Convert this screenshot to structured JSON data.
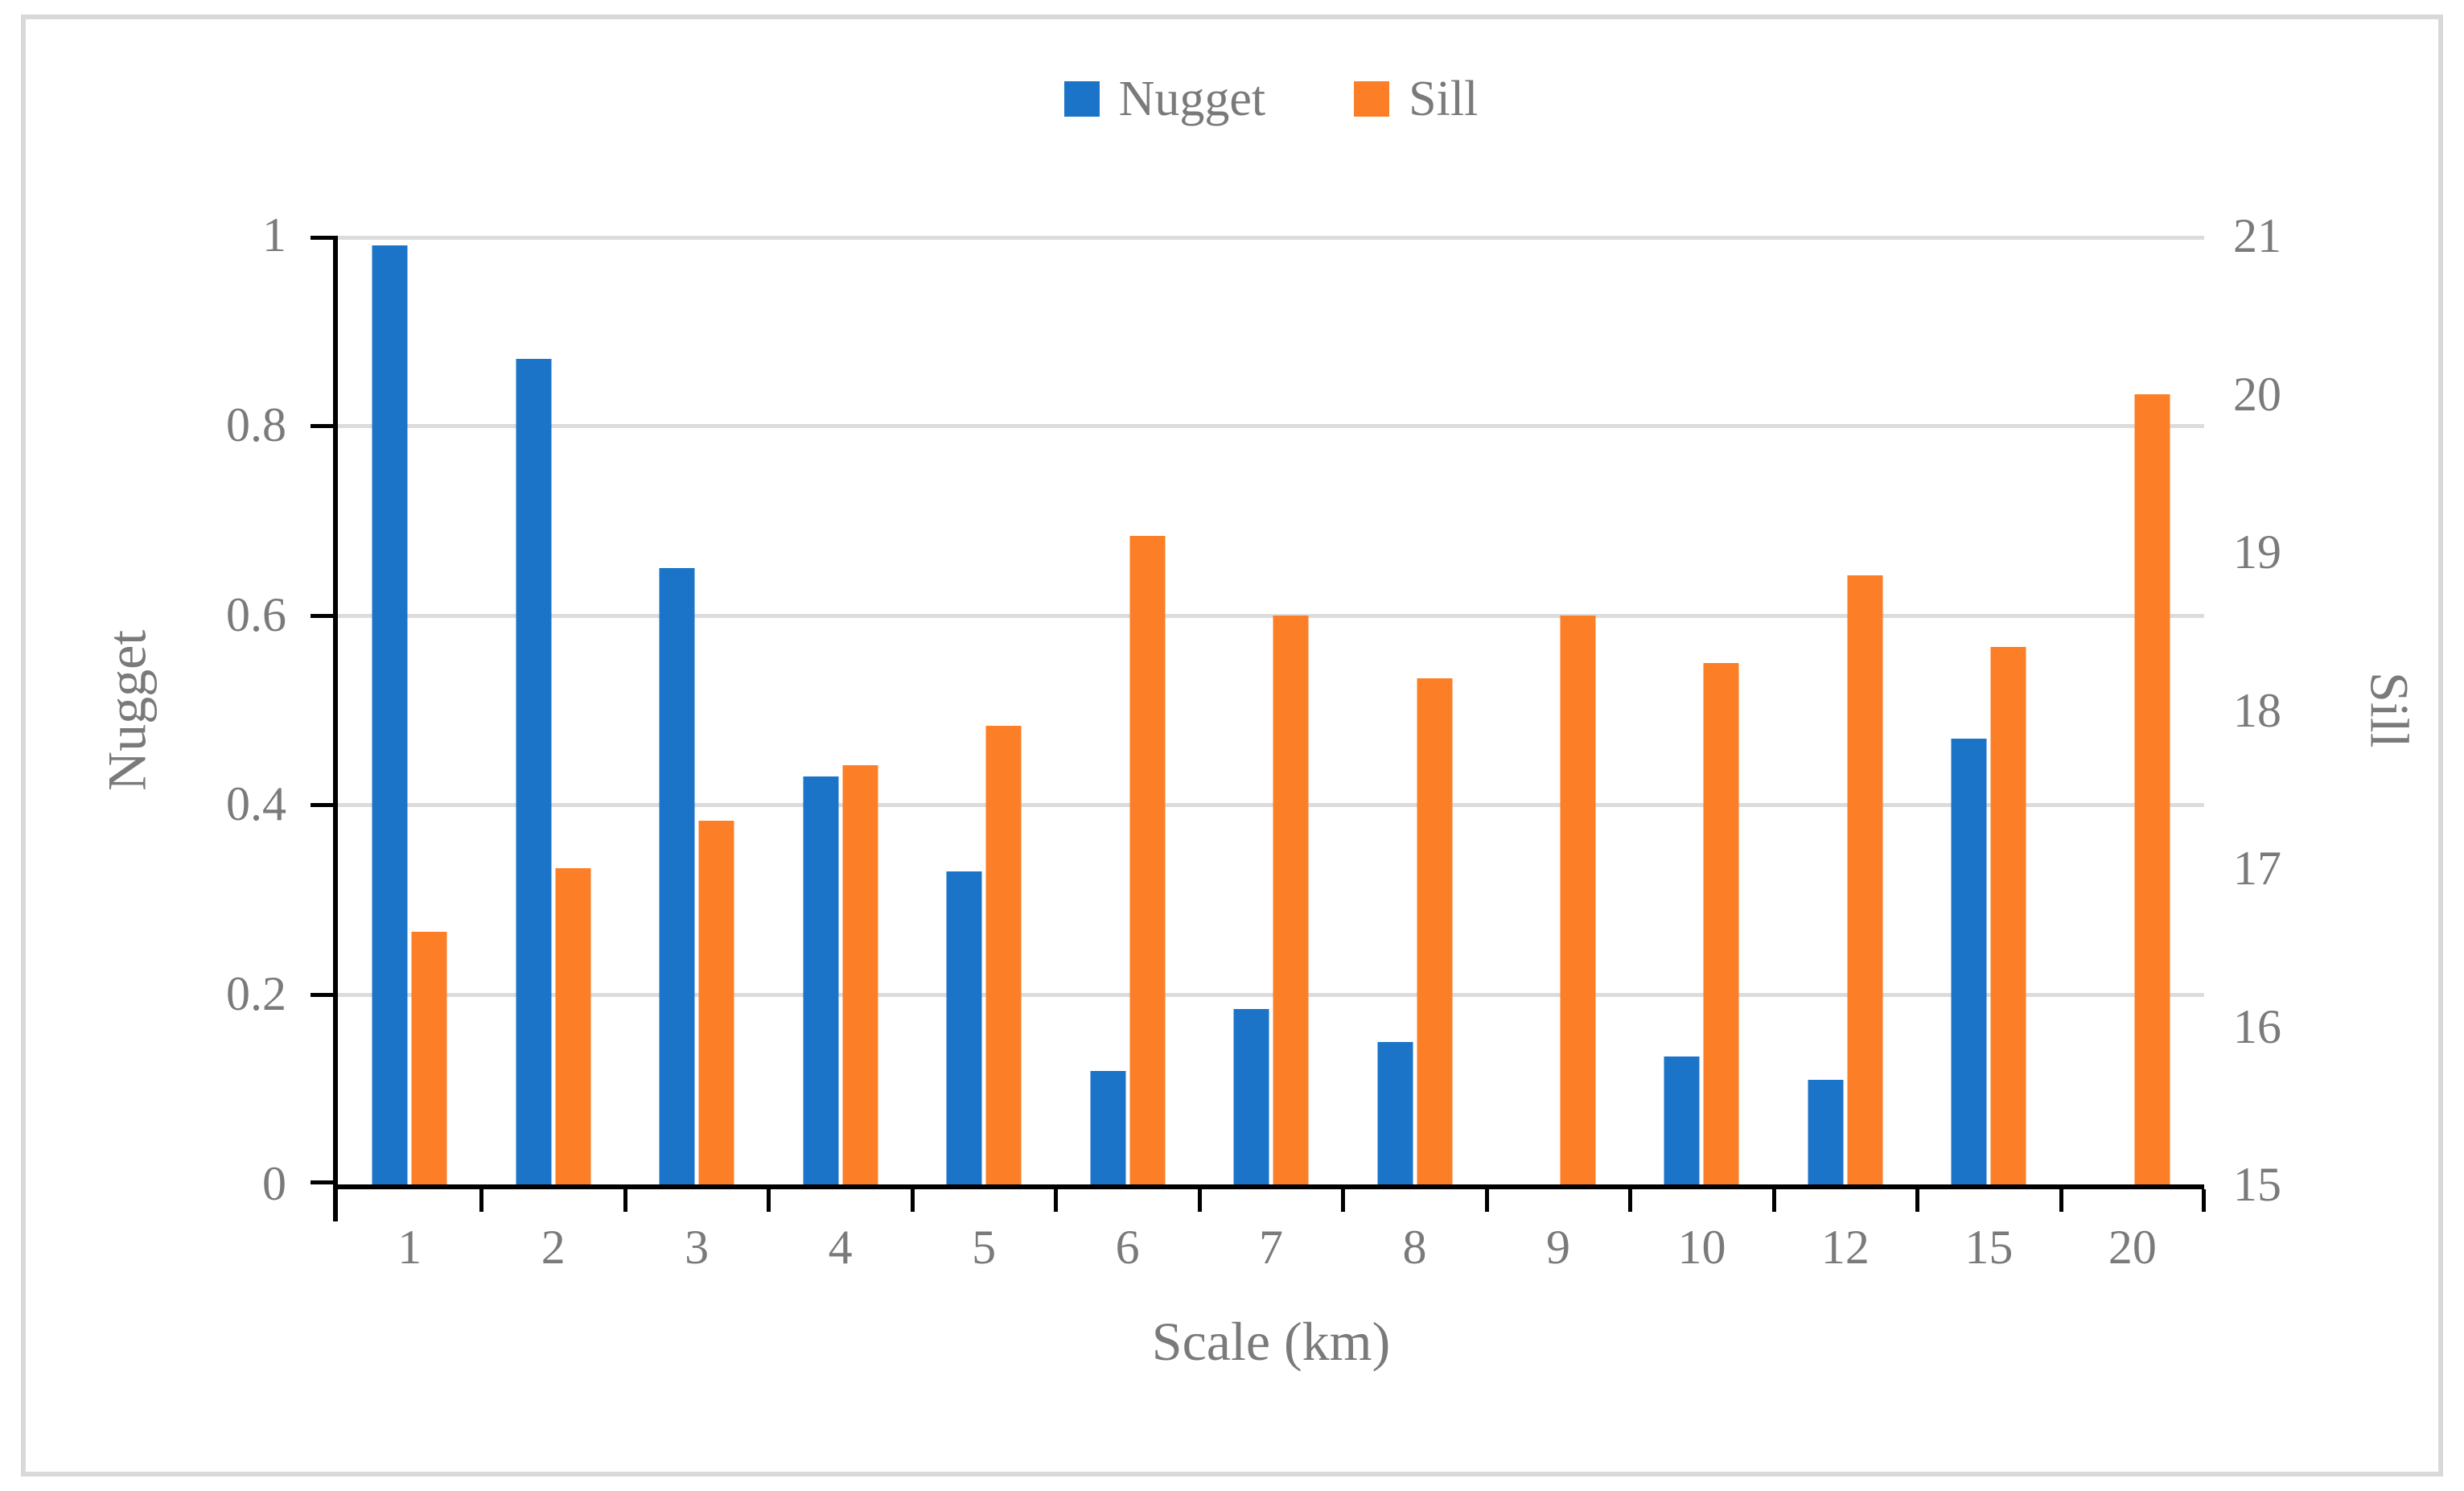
{
  "figure": {
    "border_color": "#d9d9d9",
    "background": "#ffffff",
    "text_color": "#7a7a7a",
    "gridline_color": "#dcdcdc",
    "axis_line_color": "#000000"
  },
  "chart_data": {
    "type": "bar",
    "title": "",
    "categories": [
      "1",
      "2",
      "3",
      "4",
      "5",
      "6",
      "7",
      "8",
      "9",
      "10",
      "12",
      "15",
      "20"
    ],
    "xlabel": "Scale (km)",
    "grid": true,
    "legend_position": "top-center",
    "series": [
      {
        "name": "Nugget",
        "axis": "left",
        "color": "#1b74c8",
        "values": [
          0.99,
          0.87,
          0.65,
          0.43,
          0.33,
          0.12,
          0.185,
          0.15,
          0,
          0.135,
          0.11,
          0.47,
          0
        ]
      },
      {
        "name": "Sill",
        "axis": "right",
        "color": "#fc7e26",
        "values": [
          16.6,
          17.0,
          17.3,
          17.65,
          17.9,
          19.1,
          18.6,
          18.2,
          18.6,
          18.3,
          18.85,
          18.4,
          20.0
        ]
      }
    ],
    "left_axis": {
      "label": "Nugget",
      "min": 0,
      "max": 1,
      "ticks": [
        "1",
        "0.8",
        "0.6",
        "0.4",
        "0.2",
        "0"
      ]
    },
    "right_axis": {
      "label": "Sill",
      "min": 15,
      "max": 21,
      "ticks": [
        "21",
        "20",
        "19",
        "18",
        "17",
        "16",
        "15"
      ]
    }
  }
}
